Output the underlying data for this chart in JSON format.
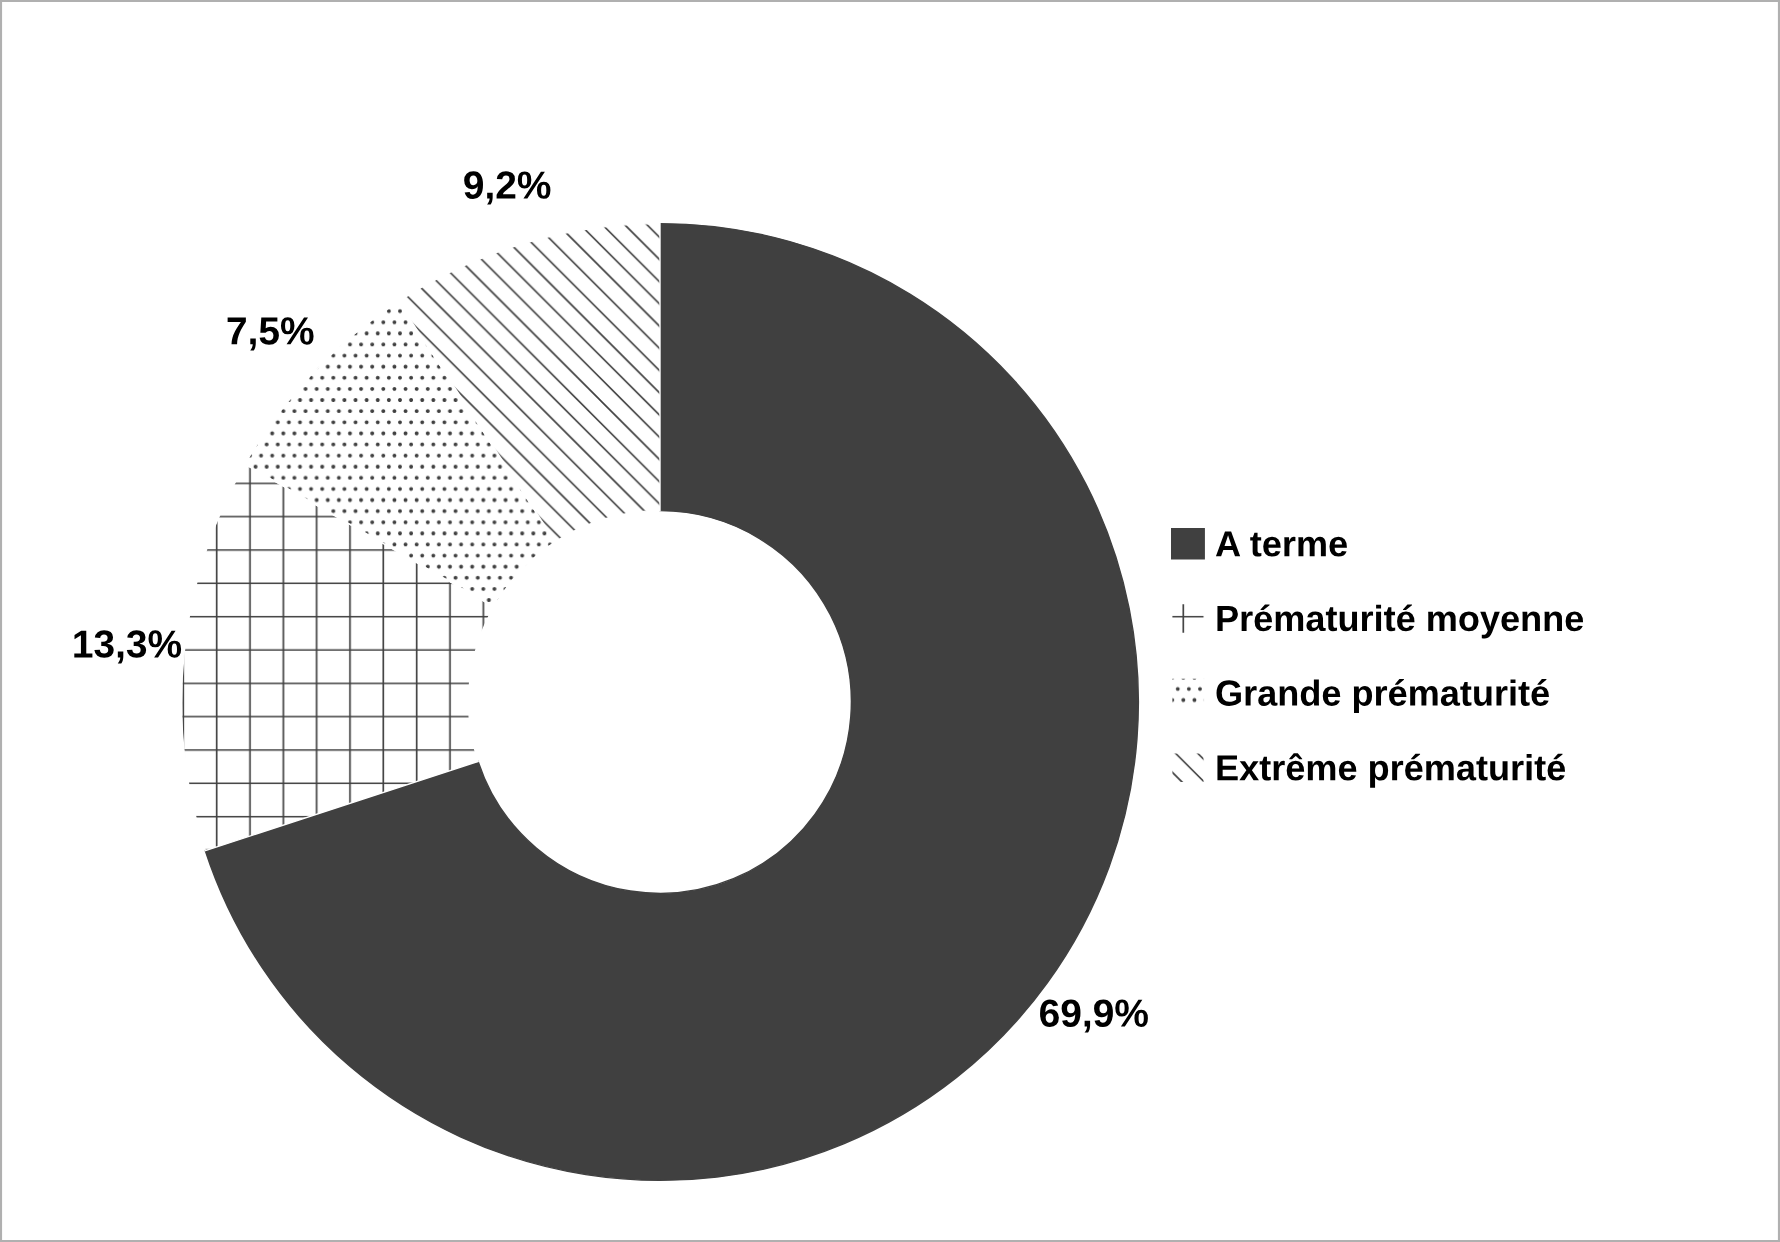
{
  "chart_data": {
    "type": "donut",
    "categories": [
      "A terme",
      "Prématurité moyenne",
      "Grande prématurité",
      "Extrême prématurité"
    ],
    "values": [
      69.9,
      13.3,
      7.5,
      9.2
    ],
    "value_labels": [
      "69,9%",
      "13,3%",
      "7,5%",
      "9,2%"
    ],
    "colors": [
      "#404040",
      "#ffffff",
      "#ffffff",
      "#ffffff"
    ],
    "legend": "right"
  }
}
